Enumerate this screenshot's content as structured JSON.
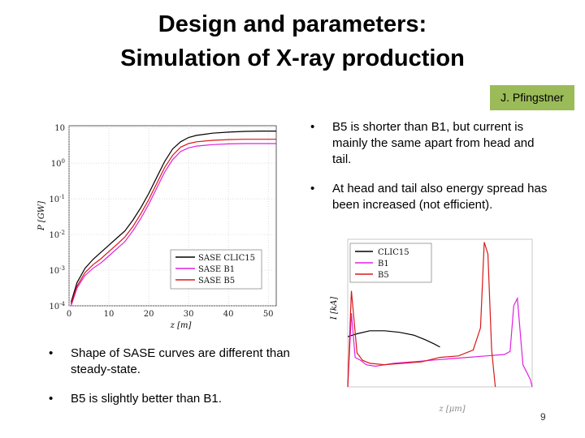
{
  "slide": {
    "title_line1": "Design and parameters:",
    "title_line2": "Simulation of X-ray production",
    "author": "J. Pfingstner",
    "bullets_right": [
      "B5 is shorter than B1, but current is mainly the same apart from head and tail.",
      "At head and tail also energy spread has been increased (not efficient)."
    ],
    "bullets_left": [
      "Shape of SASE curves are different than steady-state.",
      "B5 is slightly better than B1."
    ],
    "bullet_char": "•",
    "page_number": "9"
  },
  "colors": {
    "black": "#000000",
    "magenta": "#e020e0",
    "red": "#d81818",
    "author_bg": "#9bbb59"
  },
  "chart_data": [
    {
      "type": "line",
      "xlabel": "z [m]",
      "ylabel": "P [GW]",
      "xlim": [
        0,
        52
      ],
      "ylim_log10": [
        -4,
        1.05
      ],
      "yscale": "log",
      "xticks": [
        "0",
        "10",
        "20",
        "30",
        "40",
        "50"
      ],
      "yticks": [
        "10^-4",
        "10^-3",
        "10^-2",
        "10^-1",
        "10^0",
        "10"
      ],
      "grid": true,
      "legend": {
        "position": "lower-right",
        "entries": [
          "SASE CLIC15",
          "SASE B1",
          "SASE B5"
        ]
      },
      "series": [
        {
          "name": "SASE CLIC15",
          "color": "#000000",
          "x": [
            0.5,
            2,
            4,
            6,
            8,
            10,
            12,
            14,
            16,
            18,
            20,
            22,
            24,
            26,
            28,
            30,
            32,
            36,
            40,
            44,
            48,
            52
          ],
          "y": [
            -3.9,
            -3.35,
            -2.95,
            -2.7,
            -2.5,
            -2.3,
            -2.1,
            -1.9,
            -1.6,
            -1.25,
            -0.85,
            -0.4,
            0.05,
            0.4,
            0.6,
            0.72,
            0.78,
            0.84,
            0.87,
            0.89,
            0.9,
            0.9
          ]
        },
        {
          "name": "SASE B1",
          "color": "#e020e0",
          "x": [
            0.5,
            2,
            4,
            6,
            8,
            10,
            12,
            14,
            16,
            18,
            20,
            22,
            24,
            26,
            28,
            30,
            32,
            36,
            40,
            44,
            48,
            52
          ],
          "y": [
            -4.0,
            -3.5,
            -3.15,
            -2.95,
            -2.8,
            -2.6,
            -2.4,
            -2.2,
            -1.9,
            -1.55,
            -1.15,
            -0.7,
            -0.25,
            0.1,
            0.33,
            0.43,
            0.48,
            0.52,
            0.54,
            0.55,
            0.55,
            0.55
          ]
        },
        {
          "name": "SASE B5",
          "color": "#d81818",
          "x": [
            0.5,
            2,
            4,
            6,
            8,
            10,
            12,
            14,
            16,
            18,
            20,
            22,
            24,
            26,
            28,
            30,
            32,
            36,
            40,
            44,
            48,
            52
          ],
          "y": [
            -3.95,
            -3.45,
            -3.07,
            -2.85,
            -2.68,
            -2.48,
            -2.28,
            -2.07,
            -1.78,
            -1.42,
            -1.02,
            -0.57,
            -0.12,
            0.22,
            0.45,
            0.55,
            0.6,
            0.64,
            0.66,
            0.67,
            0.67,
            0.67
          ]
        }
      ]
    },
    {
      "type": "line",
      "xlabel": "z [μm]",
      "ylabel": "I [kA]",
      "xlim": [
        0,
        1
      ],
      "ylim": [
        0,
        1
      ],
      "grid": false,
      "legend": {
        "position": "top-left",
        "entries": [
          "CLIC15",
          "B1",
          "B5"
        ]
      },
      "series": [
        {
          "name": "CLIC15",
          "color": "#000000",
          "x": [
            0.0,
            0.05,
            0.12,
            0.2,
            0.28,
            0.36,
            0.42,
            0.47,
            0.5
          ],
          "y": [
            0.34,
            0.36,
            0.38,
            0.38,
            0.37,
            0.35,
            0.32,
            0.29,
            0.27
          ]
        },
        {
          "name": "B1",
          "color": "#e020e0",
          "x": [
            0.0,
            0.02,
            0.04,
            0.07,
            0.1,
            0.15,
            0.25,
            0.35,
            0.45,
            0.55,
            0.65,
            0.75,
            0.85,
            0.88,
            0.9,
            0.92,
            0.95,
            0.97,
            0.99,
            1.0
          ],
          "y": [
            0.0,
            0.5,
            0.2,
            0.18,
            0.15,
            0.14,
            0.16,
            0.17,
            0.18,
            0.19,
            0.2,
            0.21,
            0.22,
            0.24,
            0.55,
            0.6,
            0.15,
            0.1,
            0.05,
            0.0
          ]
        },
        {
          "name": "B5",
          "color": "#d81818",
          "x": [
            0.0,
            0.02,
            0.05,
            0.08,
            0.12,
            0.2,
            0.3,
            0.4,
            0.5,
            0.6,
            0.68,
            0.72,
            0.74,
            0.76,
            0.78,
            0.8
          ],
          "y": [
            0.0,
            0.65,
            0.23,
            0.18,
            0.16,
            0.15,
            0.16,
            0.17,
            0.2,
            0.21,
            0.25,
            0.4,
            0.98,
            0.9,
            0.25,
            0.0
          ]
        }
      ]
    }
  ]
}
